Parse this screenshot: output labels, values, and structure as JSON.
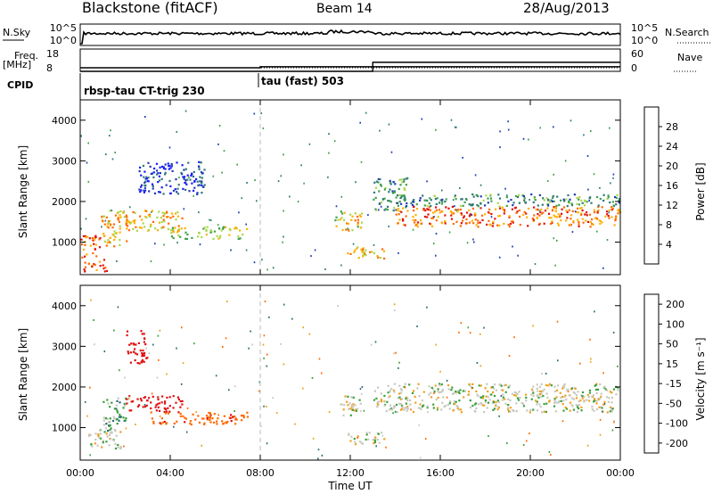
{
  "header": {
    "station": "Blackstone (fitACF)",
    "beam": "Beam 14",
    "date": "28/Aug/2013"
  },
  "top_panels": {
    "nsky_label": "N.Sky",
    "nsky_ticks": [
      "10^5",
      "10^0"
    ],
    "nsearch_label": "N.Search",
    "nsearch_ticks": [
      "10^5",
      "10^0"
    ],
    "freq_label": "Freq.",
    "freq_unit": "[MHz]",
    "freq_ticks": [
      "18",
      "8"
    ],
    "nave_label": "Nave",
    "nave_ticks": [
      "60",
      "0"
    ],
    "cpid_label": "CPID",
    "cpid_segments": [
      {
        "label": "rbsp-tau CT-trig 230",
        "start_hour": 0.0
      },
      {
        "label": "tau (fast) 503",
        "start_hour": 8.0
      }
    ],
    "freq_steps": [
      {
        "hour": 0.0,
        "mhz": 10.5
      },
      {
        "hour": 8.0,
        "mhz": 11.2
      }
    ],
    "nave_steps": [
      {
        "hour": 0.0,
        "value": 0
      },
      {
        "hour": 13.0,
        "value": 38
      }
    ]
  },
  "chart_data": [
    {
      "type": "heatmap",
      "name": "power",
      "ylabel": "Slant Range [km]",
      "yticks": [
        "1000",
        "2000",
        "3000",
        "4000"
      ],
      "ylim": [
        200,
        4500
      ],
      "xlim": [
        0,
        24
      ],
      "colorbar_label": "Power [dB]",
      "colorbar_ticks": [
        "4",
        "8",
        "12",
        "16",
        "20",
        "24",
        "28"
      ],
      "colorbar_range": [
        0,
        32
      ],
      "echo_regions": [
        {
          "t": [
            0.0,
            0.9
          ],
          "r": [
            600,
            1200
          ],
          "value": 28
        },
        {
          "t": [
            0.1,
            1.3
          ],
          "r": [
            300,
            600
          ],
          "value": 26
        },
        {
          "t": [
            0.9,
            2.2
          ],
          "r": [
            900,
            1800
          ],
          "value": 22
        },
        {
          "t": [
            2.0,
            4.5
          ],
          "r": [
            1300,
            1800
          ],
          "value": 22
        },
        {
          "t": [
            4.0,
            7.5
          ],
          "r": [
            1100,
            1400
          ],
          "value": 18
        },
        {
          "t": [
            11.3,
            12.5
          ],
          "r": [
            1300,
            1800
          ],
          "value": 20
        },
        {
          "t": [
            11.8,
            13.5
          ],
          "r": [
            600,
            900
          ],
          "value": 22
        },
        {
          "t": [
            13.0,
            14.5
          ],
          "r": [
            1800,
            2600
          ],
          "value": 12
        },
        {
          "t": [
            14.0,
            24.0
          ],
          "r": [
            1400,
            1900
          ],
          "value": 26
        },
        {
          "t": [
            14.0,
            24.0
          ],
          "r": [
            1900,
            2200
          ],
          "value": 12
        },
        {
          "t": [
            2.5,
            5.5
          ],
          "r": [
            2200,
            3000
          ],
          "value": 6
        }
      ]
    },
    {
      "type": "heatmap",
      "name": "velocity",
      "ylabel": "Slant Range [km]",
      "yticks": [
        "1000",
        "2000",
        "3000",
        "4000"
      ],
      "ylim": [
        200,
        4500
      ],
      "xlim": [
        0,
        24
      ],
      "xlabel": "Time UT",
      "xticks": [
        "00:00",
        "04:00",
        "08:00",
        "12:00",
        "16:00",
        "20:00",
        "00:00"
      ],
      "colorbar_label": "Velocity [m s⁻¹]",
      "colorbar_ticks": [
        "200",
        "100",
        "50",
        "15",
        "-15",
        "-50",
        "-100",
        "-200"
      ],
      "echo_regions": [
        {
          "t": [
            0.3,
            1.8
          ],
          "r": [
            500,
            1000
          ],
          "value": 0
        },
        {
          "t": [
            1.0,
            2.0
          ],
          "r": [
            900,
            1800
          ],
          "value": 30
        },
        {
          "t": [
            2.0,
            4.5
          ],
          "r": [
            1400,
            1800
          ],
          "value": -250
        },
        {
          "t": [
            3.0,
            7.5
          ],
          "r": [
            1100,
            1400
          ],
          "value": -80
        },
        {
          "t": [
            11.5,
            12.5
          ],
          "r": [
            1300,
            1800
          ],
          "value": 0
        },
        {
          "t": [
            11.8,
            13.5
          ],
          "r": [
            600,
            900
          ],
          "value": 0
        },
        {
          "t": [
            13.0,
            24.0
          ],
          "r": [
            1400,
            2100
          ],
          "value": 0
        },
        {
          "t": [
            2.0,
            3.0
          ],
          "r": [
            2600,
            3400
          ],
          "value": -250
        }
      ]
    }
  ],
  "colors": {
    "power_scale": [
      "#1a1aff",
      "#1e3cb4",
      "#2f7a78",
      "#3fa04a",
      "#a8d84a",
      "#ffb000",
      "#ff6a00",
      "#e01010"
    ],
    "velocity_scale": [
      "#1e2ab4",
      "#2f6a78",
      "#3aa03a",
      "#c8c8c0",
      "#f0a020",
      "#ff6a00",
      "#e01010"
    ]
  }
}
